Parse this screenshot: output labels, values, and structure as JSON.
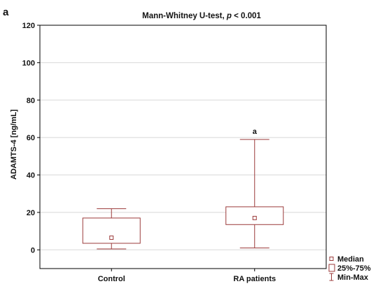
{
  "chart_data": {
    "type": "box",
    "panel_label": "a",
    "title": "Mann-Whitney U-test, ",
    "title_italic": "p",
    "title_suffix": " < 0.001",
    "ylabel": "ADAMTS-4 [ng/mL]",
    "xlabel": "",
    "ylim": [
      -10,
      120
    ],
    "yticks": [
      0,
      20,
      40,
      60,
      80,
      100,
      120
    ],
    "grid": true,
    "legend_placement": "bottom-right",
    "color": "#9b3a3a",
    "categories": [
      "Control",
      "RA patients"
    ],
    "series": [
      {
        "category": "Control",
        "min": 0.5,
        "q1": 3.5,
        "median": 6.5,
        "q3": 17,
        "max": 22,
        "annotation": ""
      },
      {
        "category": "RA patients",
        "min": 1,
        "q1": 13.5,
        "median": 17,
        "q3": 23,
        "max": 59,
        "annotation": "a"
      }
    ],
    "legend": [
      {
        "symbol": "median",
        "label": "Median"
      },
      {
        "symbol": "box",
        "label": "25%-75%"
      },
      {
        "symbol": "whisker",
        "label": "Min-Max"
      }
    ]
  }
}
